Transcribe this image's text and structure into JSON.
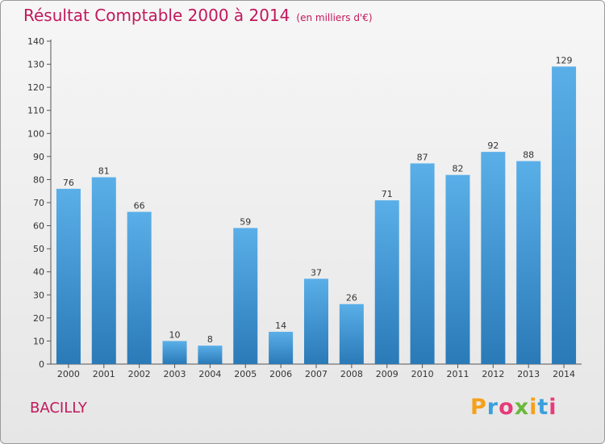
{
  "header": {
    "title": "Résultat Comptable 2000 à 2014",
    "unit": "(en milliers d'€)"
  },
  "commune": "BACILLY",
  "logo": {
    "letters": [
      "P",
      "r",
      "o",
      "x",
      "i",
      "t",
      "i"
    ],
    "colors": [
      "#f6a01a",
      "#3aa0dc",
      "#e63b7a",
      "#6ab83b",
      "#f6a01a",
      "#3aa0dc",
      "#e63b7a"
    ]
  },
  "colors": {
    "bar_top": "#5aafe8",
    "bar_bottom": "#2a7ab8",
    "title": "#c2185b"
  },
  "chart_data": {
    "type": "bar",
    "title": "Résultat Comptable 2000 à 2014",
    "ylabel": "en milliers d'€",
    "xlabel": "",
    "categories": [
      "2000",
      "2001",
      "2002",
      "2003",
      "2004",
      "2005",
      "2006",
      "2007",
      "2008",
      "2009",
      "2010",
      "2011",
      "2012",
      "2013",
      "2014"
    ],
    "values": [
      76,
      81,
      66,
      10,
      8,
      59,
      14,
      37,
      26,
      71,
      87,
      82,
      92,
      88,
      129
    ],
    "ylim": [
      0,
      140
    ],
    "yticks": [
      0,
      10,
      20,
      30,
      40,
      50,
      60,
      70,
      80,
      90,
      100,
      110,
      120,
      130,
      140
    ],
    "grid": false,
    "legend": "none"
  }
}
